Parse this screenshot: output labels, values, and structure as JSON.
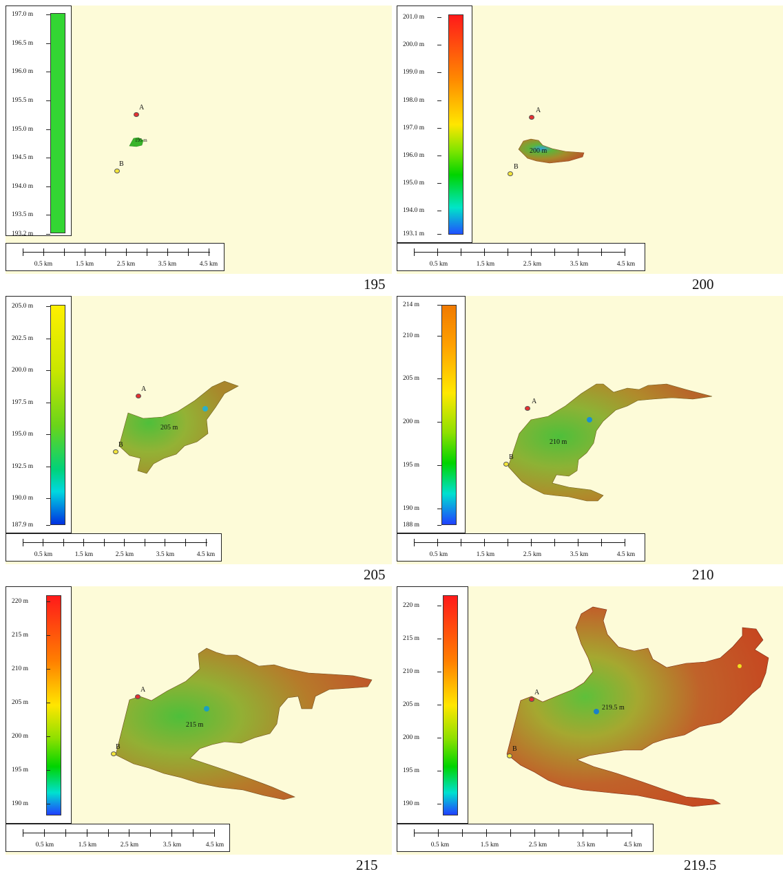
{
  "panels": [
    {
      "caption": "195",
      "ticks": [
        "197.0 m",
        "196.5 m",
        "196.0 m",
        "195.5 m",
        "195.0 m",
        "194.5 m",
        "194.0 m",
        "193.5 m",
        "193.2 m"
      ],
      "elevation_label": "195 m",
      "point_a": "A",
      "point_b": "B"
    },
    {
      "caption": "200",
      "ticks": [
        "201.0 m",
        "200.0 m",
        "199.0 m",
        "198.0 m",
        "197.0 m",
        "196.0 m",
        "195.0 m",
        "194.0 m",
        "193.1 m"
      ],
      "elevation_label": "200 m",
      "point_a": "A",
      "point_b": "B"
    },
    {
      "caption": "205",
      "ticks": [
        "205.0 m",
        "202.5 m",
        "200.0 m",
        "197.5 m",
        "195.0 m",
        "192.5 m",
        "190.0 m",
        "187.9 m"
      ],
      "elevation_label": "205 m",
      "point_a": "A",
      "point_b": "B"
    },
    {
      "caption": "210",
      "ticks": [
        "214 m",
        "210 m",
        "205 m",
        "200 m",
        "195 m",
        "190 m",
        "188 m"
      ],
      "elevation_label": "210 m",
      "point_a": "A",
      "point_b": "B"
    },
    {
      "caption": "215",
      "ticks": [
        "220 m",
        "215 m",
        "210 m",
        "205 m",
        "200 m",
        "195 m",
        "190 m"
      ],
      "elevation_label": "215 m",
      "point_a": "A",
      "point_b": "B"
    },
    {
      "caption": "219.5",
      "ticks": [
        "220 m",
        "215 m",
        "210 m",
        "205 m",
        "200 m",
        "195 m",
        "190 m"
      ],
      "elevation_label": "219.5 m",
      "point_a": "A",
      "point_b": "B"
    }
  ],
  "scale_labels": [
    "0.5 km",
    "1.5 km",
    "2.5 km",
    "3.5 km",
    "4.5 km"
  ],
  "colors": {
    "background": "#fdfbd8",
    "point_a": "#e53030",
    "point_b": "#f3e53a"
  }
}
